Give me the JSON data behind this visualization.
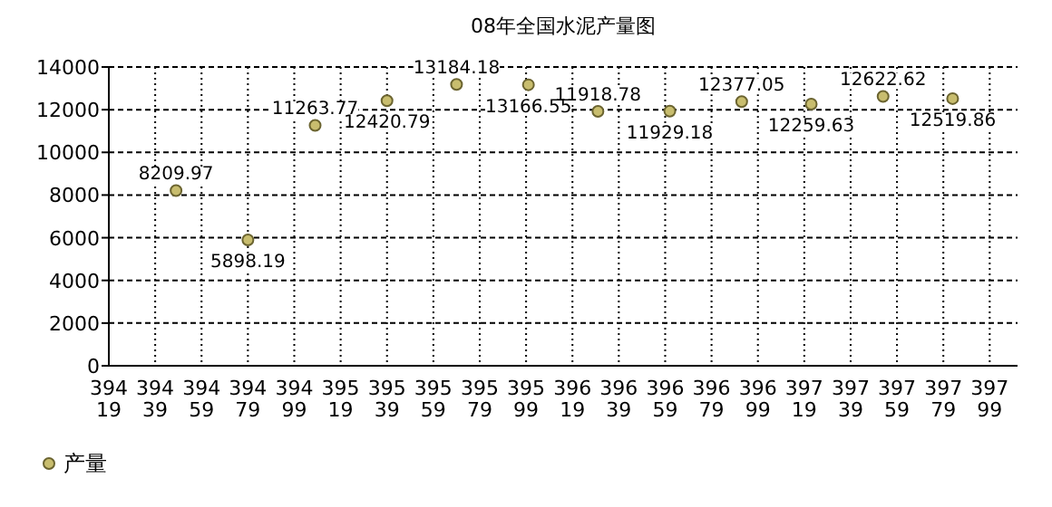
{
  "chart_data": {
    "type": "scatter",
    "title": "08年全国水泥产量图",
    "x": [
      39448,
      39479,
      39508,
      39539,
      39569,
      39600,
      39630,
      39661,
      39692,
      39722,
      39753,
      39783
    ],
    "series": [
      {
        "name": "产量",
        "color": "#c8bd6e",
        "values": [
          8209.97,
          5898.19,
          11263.77,
          12420.79,
          13184.18,
          13166.55,
          11918.78,
          11929.18,
          12377.05,
          12259.63,
          12622.62,
          12519.86
        ]
      }
    ],
    "xlim": [
      39419,
      39811
    ],
    "xticks": [
      39419,
      39439,
      39459,
      39479,
      39499,
      39519,
      39539,
      39559,
      39579,
      39599,
      39619,
      39639,
      39659,
      39679,
      39699,
      39719,
      39739,
      39759,
      39779,
      39799
    ],
    "ylim": [
      0,
      14000
    ],
    "yticks": [
      0,
      2000,
      4000,
      6000,
      8000,
      10000,
      12000,
      14000
    ],
    "grid": true,
    "legend": "bottom left",
    "marker": "circle",
    "data_labels": true
  }
}
